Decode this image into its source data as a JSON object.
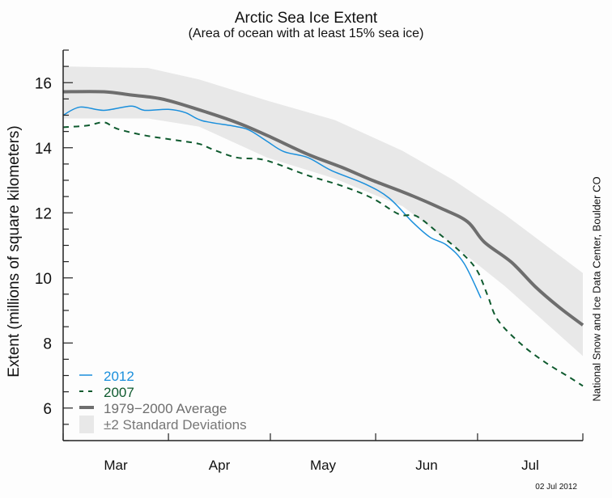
{
  "chart_data": {
    "type": "line",
    "title": "Arctic Sea Ice Extent",
    "subtitle": "(Area of ocean with at least 15% sea ice)",
    "xlabel": "",
    "ylabel": "Extent (millions of square kilometers)",
    "x_unit": "days since Mar 1",
    "xlim": [
      0,
      153
    ],
    "ylim": [
      5,
      17
    ],
    "y_ticks": [
      6,
      8,
      10,
      12,
      14,
      16
    ],
    "y_minor_step": 0.5,
    "x_ticks": [
      0,
      31,
      61,
      92,
      122,
      153
    ],
    "x_tick_labels": [
      {
        "label": "Mar",
        "x": 15.5
      },
      {
        "label": "Apr",
        "x": 46
      },
      {
        "label": "May",
        "x": 76.5
      },
      {
        "label": "Jun",
        "x": 107
      },
      {
        "label": "Jul",
        "x": 137.5
      }
    ],
    "grid": false,
    "legend_position": "bottom-left",
    "band": {
      "name": "±2 Standard Deviations",
      "color": "#e8e8e8",
      "x": [
        0,
        25,
        40,
        60,
        80,
        100,
        115,
        130,
        153
      ],
      "upper": [
        16.5,
        16.45,
        16.1,
        15.45,
        14.85,
        13.9,
        13.0,
        11.95,
        10.15
      ],
      "lower": [
        14.9,
        14.9,
        14.65,
        13.7,
        13.05,
        12.2,
        11.0,
        9.75,
        7.6
      ]
    },
    "series": [
      {
        "name": "1979−2000 Average",
        "color": "#6e6e6e",
        "style": "solid-thick",
        "x": [
          0,
          12,
          20,
          29,
          39,
          51,
          60,
          72,
          82,
          91,
          101,
          111,
          119,
          124,
          132,
          139,
          146,
          153
        ],
        "values": [
          15.72,
          15.72,
          15.62,
          15.5,
          15.2,
          14.78,
          14.38,
          13.8,
          13.4,
          13.0,
          12.6,
          12.15,
          11.73,
          11.1,
          10.48,
          9.73,
          9.1,
          8.55
        ]
      },
      {
        "name": "2012",
        "color": "#1a8fdc",
        "style": "solid",
        "x": [
          0,
          5,
          12,
          20,
          24,
          31,
          36,
          41,
          51,
          55,
          60,
          65,
          72,
          79,
          89,
          96,
          103,
          108,
          113,
          118,
          123
        ],
        "values": [
          15.0,
          15.25,
          15.15,
          15.28,
          15.15,
          15.18,
          15.08,
          14.83,
          14.65,
          14.53,
          14.2,
          13.88,
          13.7,
          13.3,
          12.88,
          12.45,
          11.7,
          11.25,
          11.0,
          10.45,
          9.38
        ]
      },
      {
        "name": "2007",
        "color": "#0e5a2e",
        "style": "dashed",
        "x": [
          0,
          7,
          12,
          16,
          24,
          34,
          40,
          44,
          51,
          58,
          63,
          72,
          82,
          91,
          99,
          104,
          111,
          118,
          122,
          125,
          128,
          135,
          142,
          149,
          153
        ],
        "values": [
          14.63,
          14.68,
          14.78,
          14.58,
          14.38,
          14.22,
          14.12,
          13.95,
          13.7,
          13.65,
          13.5,
          13.15,
          12.83,
          12.45,
          11.95,
          11.9,
          11.33,
          10.7,
          10.2,
          9.45,
          8.7,
          7.95,
          7.4,
          6.95,
          6.68
        ]
      }
    ],
    "legend": [
      {
        "label": "2012",
        "color": "#1a8fdc",
        "swatch": "line"
      },
      {
        "label": "2007",
        "color": "#0e5a2e",
        "swatch": "dashed"
      },
      {
        "label": "1979−2000 Average",
        "color": "#6e6e6e",
        "swatch": "thick"
      },
      {
        "label": "±2 Standard Deviations",
        "color": "#777777",
        "swatch": "box"
      }
    ]
  },
  "credit": "National Snow and Ice Data Center, Boulder CO",
  "date_stamp": "02 Jul 2012"
}
